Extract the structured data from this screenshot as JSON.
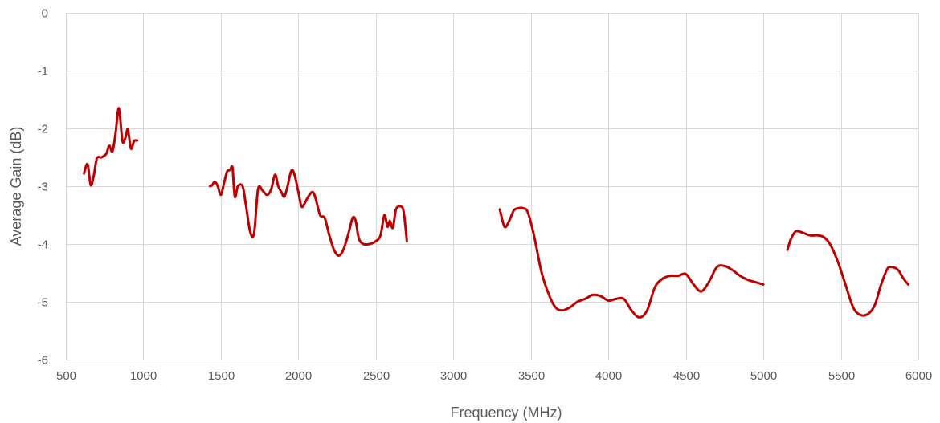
{
  "chart_data": {
    "type": "line",
    "title": "",
    "xlabel": "Frequency (MHz)",
    "ylabel": "Average Gain (dB)",
    "xlim": [
      500,
      6000
    ],
    "ylim": [
      -6,
      0
    ],
    "xticks": [
      500,
      1000,
      1500,
      2000,
      2500,
      3000,
      3500,
      4000,
      4500,
      5000,
      5500,
      6000
    ],
    "yticks": [
      0,
      -1,
      -2,
      -3,
      -4,
      -5,
      -6
    ],
    "grid": true,
    "legend": "none",
    "colors": {
      "series": "#c00000",
      "grid": "#d9d9d9",
      "text": "#595959"
    },
    "series": [
      {
        "segments": [
          [
            [
              617,
              -2.78
            ],
            [
              640,
              -2.62
            ],
            [
              660,
              -2.98
            ],
            [
              680,
              -2.82
            ],
            [
              700,
              -2.52
            ],
            [
              730,
              -2.5
            ],
            [
              760,
              -2.44
            ],
            [
              780,
              -2.3
            ],
            [
              800,
              -2.4
            ],
            [
              820,
              -2.1
            ],
            [
              842,
              -1.65
            ],
            [
              865,
              -2.22
            ],
            [
              885,
              -2.15
            ],
            [
              900,
              -2.02
            ],
            [
              920,
              -2.35
            ],
            [
              940,
              -2.22
            ],
            [
              960,
              -2.21
            ]
          ],
          [
            [
              1430,
              -3.0
            ],
            [
              1445,
              -2.98
            ],
            [
              1460,
              -2.92
            ],
            [
              1480,
              -3.0
            ],
            [
              1500,
              -3.15
            ],
            [
              1520,
              -2.95
            ],
            [
              1540,
              -2.75
            ],
            [
              1560,
              -2.72
            ],
            [
              1575,
              -2.68
            ],
            [
              1590,
              -3.18
            ],
            [
              1610,
              -3.0
            ],
            [
              1640,
              -3.0
            ],
            [
              1660,
              -3.3
            ],
            [
              1690,
              -3.8
            ],
            [
              1715,
              -3.8
            ],
            [
              1740,
              -3.05
            ],
            [
              1770,
              -3.08
            ],
            [
              1800,
              -3.15
            ],
            [
              1825,
              -3.05
            ],
            [
              1850,
              -2.8
            ],
            [
              1870,
              -3.0
            ],
            [
              1890,
              -3.1
            ],
            [
              1910,
              -3.18
            ],
            [
              1930,
              -3.0
            ],
            [
              1955,
              -2.73
            ],
            [
              1975,
              -2.8
            ],
            [
              2000,
              -3.1
            ],
            [
              2020,
              -3.35
            ],
            [
              2040,
              -3.3
            ],
            [
              2060,
              -3.2
            ],
            [
              2090,
              -3.1
            ],
            [
              2110,
              -3.2
            ],
            [
              2140,
              -3.5
            ],
            [
              2170,
              -3.55
            ],
            [
              2200,
              -3.85
            ],
            [
              2230,
              -4.1
            ],
            [
              2260,
              -4.2
            ],
            [
              2290,
              -4.1
            ],
            [
              2320,
              -3.85
            ],
            [
              2350,
              -3.55
            ],
            [
              2370,
              -3.6
            ],
            [
              2390,
              -3.9
            ],
            [
              2420,
              -4.0
            ],
            [
              2460,
              -4.0
            ],
            [
              2500,
              -3.95
            ],
            [
              2530,
              -3.85
            ],
            [
              2555,
              -3.5
            ],
            [
              2575,
              -3.7
            ],
            [
              2590,
              -3.6
            ],
            [
              2610,
              -3.72
            ],
            [
              2630,
              -3.4
            ],
            [
              2660,
              -3.35
            ],
            [
              2680,
              -3.45
            ],
            [
              2700,
              -3.95
            ]
          ],
          [
            [
              3300,
              -3.4
            ],
            [
              3330,
              -3.7
            ],
            [
              3360,
              -3.6
            ],
            [
              3390,
              -3.42
            ],
            [
              3420,
              -3.38
            ],
            [
              3450,
              -3.38
            ],
            [
              3480,
              -3.45
            ],
            [
              3520,
              -3.85
            ],
            [
              3570,
              -4.5
            ],
            [
              3620,
              -4.9
            ],
            [
              3660,
              -5.1
            ],
            [
              3700,
              -5.15
            ],
            [
              3750,
              -5.1
            ],
            [
              3800,
              -5.0
            ],
            [
              3850,
              -4.95
            ],
            [
              3900,
              -4.88
            ],
            [
              3950,
              -4.9
            ],
            [
              4000,
              -4.98
            ],
            [
              4050,
              -4.95
            ],
            [
              4100,
              -4.95
            ],
            [
              4150,
              -5.15
            ],
            [
              4200,
              -5.27
            ],
            [
              4250,
              -5.15
            ],
            [
              4300,
              -4.75
            ],
            [
              4350,
              -4.6
            ],
            [
              4400,
              -4.55
            ],
            [
              4450,
              -4.55
            ],
            [
              4500,
              -4.52
            ],
            [
              4550,
              -4.7
            ],
            [
              4600,
              -4.82
            ],
            [
              4650,
              -4.65
            ],
            [
              4700,
              -4.4
            ],
            [
              4750,
              -4.38
            ],
            [
              4800,
              -4.45
            ],
            [
              4850,
              -4.55
            ],
            [
              4900,
              -4.62
            ],
            [
              4950,
              -4.66
            ],
            [
              5000,
              -4.7
            ]
          ],
          [
            [
              5155,
              -4.1
            ],
            [
              5180,
              -3.9
            ],
            [
              5210,
              -3.78
            ],
            [
              5250,
              -3.8
            ],
            [
              5300,
              -3.85
            ],
            [
              5350,
              -3.85
            ],
            [
              5390,
              -3.88
            ],
            [
              5430,
              -4.0
            ],
            [
              5480,
              -4.3
            ],
            [
              5530,
              -4.7
            ],
            [
              5580,
              -5.1
            ],
            [
              5630,
              -5.23
            ],
            [
              5680,
              -5.2
            ],
            [
              5720,
              -5.05
            ],
            [
              5760,
              -4.7
            ],
            [
              5800,
              -4.43
            ],
            [
              5830,
              -4.4
            ],
            [
              5870,
              -4.45
            ],
            [
              5900,
              -4.58
            ],
            [
              5935,
              -4.7
            ]
          ]
        ]
      }
    ]
  }
}
